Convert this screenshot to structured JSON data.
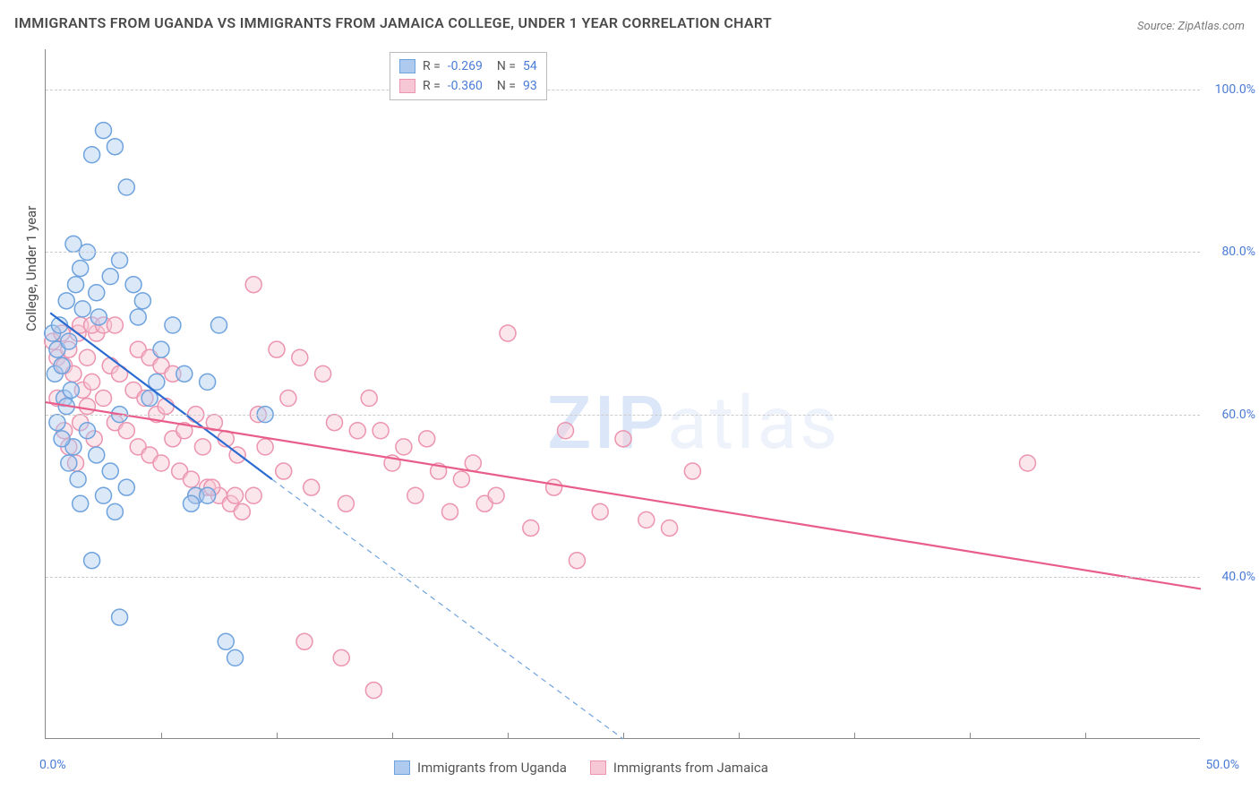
{
  "title": "IMMIGRANTS FROM UGANDA VS IMMIGRANTS FROM JAMAICA COLLEGE, UNDER 1 YEAR CORRELATION CHART",
  "source": "Source: ZipAtlas.com",
  "watermark": "ZIPatlas",
  "ylabel": "College, Under 1 year",
  "chart": {
    "type": "scatter",
    "background_color": "#ffffff",
    "grid_color": "#cccccc",
    "axis_color": "#888888",
    "tick_label_color": "#4a7bd6",
    "text_color": "#4a4a4a",
    "xlim": [
      0,
      50
    ],
    "ylim": [
      20,
      105
    ],
    "xticks": [
      0,
      50
    ],
    "xtick_labels": [
      "0.0%",
      "50.0%"
    ],
    "xtick_marks_at": [
      5,
      10,
      15,
      20,
      25,
      30,
      35,
      40,
      45
    ],
    "yticks": [
      40,
      60,
      80,
      100
    ],
    "ytick_labels": [
      "40.0%",
      "60.0%",
      "80.0%",
      "100.0%"
    ],
    "marker_radius": 9,
    "marker_opacity": 0.45,
    "line_width": 2.2,
    "series": [
      {
        "name": "Immigrants from Uganda",
        "color_fill": "#aecbef",
        "color_stroke": "#6fa3de",
        "line_color": "#2c6bd1",
        "r_value": "-0.269",
        "n_value": "54",
        "trend": {
          "x1": 0.2,
          "y1": 72.5,
          "x2": 9.8,
          "y2": 52.0
        },
        "extrap": {
          "x1": 9.8,
          "y1": 52.0,
          "x2": 25.0,
          "y2": 20.0
        },
        "points": [
          [
            0.3,
            70
          ],
          [
            0.4,
            65
          ],
          [
            0.5,
            68
          ],
          [
            0.6,
            71
          ],
          [
            0.7,
            66
          ],
          [
            0.8,
            62
          ],
          [
            0.9,
            74
          ],
          [
            1.0,
            69
          ],
          [
            1.2,
            81
          ],
          [
            1.3,
            76
          ],
          [
            1.5,
            78
          ],
          [
            1.6,
            73
          ],
          [
            1.8,
            80
          ],
          [
            2.0,
            92
          ],
          [
            2.2,
            75
          ],
          [
            2.3,
            72
          ],
          [
            2.5,
            95
          ],
          [
            2.8,
            77
          ],
          [
            3.0,
            93
          ],
          [
            3.2,
            79
          ],
          [
            3.5,
            88
          ],
          [
            3.8,
            76
          ],
          [
            4.0,
            72
          ],
          [
            4.2,
            74
          ],
          [
            1.0,
            54
          ],
          [
            1.2,
            56
          ],
          [
            1.4,
            52
          ],
          [
            1.5,
            49
          ],
          [
            1.8,
            58
          ],
          [
            2.0,
            42
          ],
          [
            2.2,
            55
          ],
          [
            2.5,
            50
          ],
          [
            2.8,
            53
          ],
          [
            3.0,
            48
          ],
          [
            3.2,
            60
          ],
          [
            3.5,
            51
          ],
          [
            0.5,
            59
          ],
          [
            0.7,
            57
          ],
          [
            0.9,
            61
          ],
          [
            1.1,
            63
          ],
          [
            5.0,
            68
          ],
          [
            5.5,
            71
          ],
          [
            6.0,
            65
          ],
          [
            6.5,
            50
          ],
          [
            4.5,
            62
          ],
          [
            4.8,
            64
          ],
          [
            7.0,
            50
          ],
          [
            7.5,
            71
          ],
          [
            3.2,
            35
          ],
          [
            7.8,
            32
          ],
          [
            8.2,
            30
          ],
          [
            9.5,
            60
          ],
          [
            6.3,
            49
          ],
          [
            7.0,
            64
          ]
        ]
      },
      {
        "name": "Immigrants from Jamaica",
        "color_fill": "#f6c7d4",
        "color_stroke": "#ec94b0",
        "line_color": "#e85d8a",
        "r_value": "-0.360",
        "n_value": "93",
        "trend": {
          "x1": 0.0,
          "y1": 61.5,
          "x2": 50.0,
          "y2": 38.5
        },
        "points": [
          [
            0.3,
            69
          ],
          [
            0.5,
            67
          ],
          [
            0.7,
            70
          ],
          [
            0.8,
            66
          ],
          [
            1.0,
            68
          ],
          [
            1.2,
            65
          ],
          [
            1.4,
            70
          ],
          [
            1.6,
            63
          ],
          [
            1.8,
            67
          ],
          [
            2.0,
            64
          ],
          [
            2.2,
            70
          ],
          [
            2.5,
            62
          ],
          [
            2.8,
            66
          ],
          [
            3.0,
            59
          ],
          [
            3.2,
            65
          ],
          [
            3.5,
            58
          ],
          [
            3.8,
            63
          ],
          [
            4.0,
            56
          ],
          [
            4.3,
            62
          ],
          [
            4.5,
            55
          ],
          [
            4.8,
            60
          ],
          [
            5.0,
            54
          ],
          [
            5.2,
            61
          ],
          [
            5.5,
            57
          ],
          [
            5.8,
            53
          ],
          [
            6.0,
            58
          ],
          [
            6.3,
            52
          ],
          [
            6.5,
            60
          ],
          [
            6.8,
            56
          ],
          [
            7.0,
            51
          ],
          [
            7.3,
            59
          ],
          [
            7.5,
            50
          ],
          [
            7.8,
            57
          ],
          [
            8.0,
            49
          ],
          [
            8.3,
            55
          ],
          [
            8.5,
            48
          ],
          [
            9.0,
            76
          ],
          [
            9.2,
            60
          ],
          [
            9.5,
            56
          ],
          [
            10.0,
            68
          ],
          [
            10.3,
            53
          ],
          [
            10.5,
            62
          ],
          [
            11.0,
            67
          ],
          [
            11.5,
            51
          ],
          [
            12.0,
            65
          ],
          [
            12.5,
            59
          ],
          [
            13.0,
            49
          ],
          [
            13.5,
            58
          ],
          [
            14.0,
            62
          ],
          [
            14.5,
            58
          ],
          [
            15.0,
            54
          ],
          [
            15.5,
            56
          ],
          [
            16.0,
            50
          ],
          [
            16.5,
            57
          ],
          [
            17.0,
            53
          ],
          [
            17.5,
            48
          ],
          [
            18.0,
            52
          ],
          [
            18.5,
            54
          ],
          [
            19.0,
            49
          ],
          [
            19.5,
            50
          ],
          [
            20.0,
            70
          ],
          [
            11.2,
            32
          ],
          [
            12.8,
            30
          ],
          [
            14.2,
            26
          ],
          [
            6.5,
            50
          ],
          [
            7.2,
            51
          ],
          [
            8.2,
            50
          ],
          [
            9.0,
            50
          ],
          [
            21.0,
            46
          ],
          [
            22.0,
            51
          ],
          [
            22.5,
            58
          ],
          [
            23.0,
            42
          ],
          [
            24.0,
            48
          ],
          [
            25.0,
            57
          ],
          [
            26.0,
            47
          ],
          [
            27.0,
            46
          ],
          [
            28.0,
            53
          ],
          [
            42.5,
            54
          ],
          [
            1.5,
            71
          ],
          [
            2.0,
            71
          ],
          [
            2.5,
            71
          ],
          [
            3.0,
            71
          ],
          [
            0.5,
            62
          ],
          [
            0.8,
            58
          ],
          [
            1.0,
            56
          ],
          [
            1.3,
            54
          ],
          [
            1.5,
            59
          ],
          [
            1.8,
            61
          ],
          [
            2.1,
            57
          ],
          [
            4.0,
            68
          ],
          [
            4.5,
            67
          ],
          [
            5.0,
            66
          ],
          [
            5.5,
            65
          ]
        ]
      }
    ]
  }
}
